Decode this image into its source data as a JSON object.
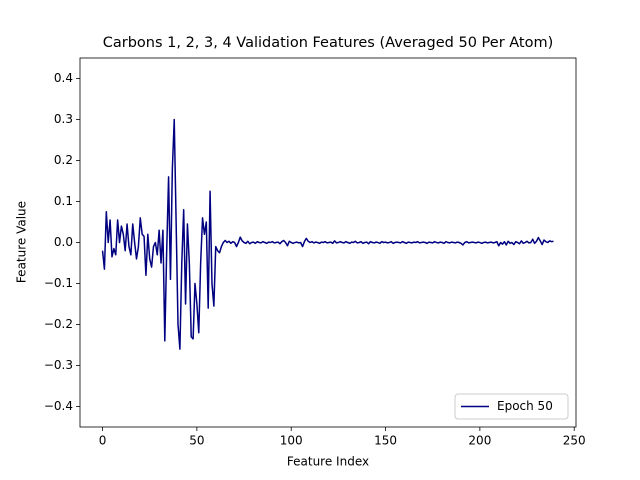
{
  "chart_data": {
    "type": "line",
    "title": "Carbons 1, 2, 3, 4 Validation Features (Averaged 50 Per Atom)",
    "x_label": "Feature Index",
    "y_label": "Feature Value",
    "legend": "lower right",
    "xlim": [
      -11.95,
      250.95
    ],
    "xticks": [
      0,
      50,
      100,
      150,
      200,
      250
    ],
    "ylim": [
      -0.45,
      0.45
    ],
    "yticks": [
      {
        "value": -0.4,
        "label": "−0.4"
      },
      {
        "value": -0.3,
        "label": "−0.3"
      },
      {
        "value": -0.2,
        "label": "−0.2"
      },
      {
        "value": -0.1,
        "label": "−0.1"
      },
      {
        "value": 0,
        "label": "0.0"
      },
      0.1,
      0.2,
      0.3,
      0.4
    ],
    "x": [
      0,
      1,
      2,
      3,
      4,
      5,
      6,
      7,
      8,
      9,
      10,
      11,
      12,
      13,
      14,
      15,
      16,
      17,
      18,
      19,
      20,
      21,
      22,
      23,
      24,
      25,
      26,
      27,
      28,
      29,
      30,
      31,
      32,
      33,
      34,
      35,
      36,
      37,
      38,
      39,
      40,
      41,
      42,
      43,
      44,
      45,
      46,
      47,
      48,
      49,
      50,
      51,
      52,
      53,
      54,
      55,
      56,
      57,
      58,
      59,
      60,
      61,
      62,
      63,
      64,
      65,
      66,
      67,
      68,
      69,
      70,
      71,
      72,
      73,
      74,
      75,
      76,
      77,
      78,
      79,
      80,
      81,
      82,
      83,
      84,
      85,
      86,
      87,
      88,
      89,
      90,
      91,
      92,
      93,
      94,
      95,
      96,
      97,
      98,
      99,
      100,
      101,
      102,
      103,
      104,
      105,
      106,
      107,
      108,
      109,
      110,
      111,
      112,
      113,
      114,
      115,
      116,
      117,
      118,
      119,
      120,
      121,
      122,
      123,
      124,
      125,
      126,
      127,
      128,
      129,
      130,
      131,
      132,
      133,
      134,
      135,
      136,
      137,
      138,
      139,
      140,
      141,
      142,
      143,
      144,
      145,
      146,
      147,
      148,
      149,
      150,
      151,
      152,
      153,
      154,
      155,
      156,
      157,
      158,
      159,
      160,
      161,
      162,
      163,
      164,
      165,
      166,
      167,
      168,
      169,
      170,
      171,
      172,
      173,
      174,
      175,
      176,
      177,
      178,
      179,
      180,
      181,
      182,
      183,
      184,
      185,
      186,
      187,
      188,
      189,
      190,
      191,
      192,
      193,
      194,
      195,
      196,
      197,
      198,
      199,
      200,
      201,
      202,
      203,
      204,
      205,
      206,
      207,
      208,
      209,
      210,
      211,
      212,
      213,
      214,
      215,
      216,
      217,
      218,
      219,
      220,
      221,
      222,
      223,
      224,
      225,
      226,
      227,
      228,
      229,
      230,
      231,
      232,
      233,
      234,
      235,
      236,
      237,
      238,
      239
    ],
    "series": [
      {
        "name": "Epoch 50",
        "color": "#000080",
        "values": [
          -0.02,
          -0.065,
          0.075,
          0.0,
          0.055,
          -0.035,
          -0.015,
          -0.03,
          0.055,
          0.0,
          0.04,
          0.02,
          -0.02,
          0.045,
          -0.01,
          -0.03,
          0.045,
          0.0,
          -0.04,
          -0.01,
          0.06,
          0.02,
          0.015,
          -0.08,
          0.02,
          -0.04,
          -0.06,
          -0.01,
          0.0,
          -0.03,
          0.03,
          -0.05,
          0.03,
          -0.24,
          -0.02,
          0.16,
          -0.09,
          0.18,
          0.3,
          0.05,
          -0.2,
          -0.26,
          -0.05,
          0.08,
          -0.15,
          0.045,
          -0.05,
          -0.23,
          -0.235,
          -0.1,
          -0.15,
          -0.22,
          -0.05,
          0.06,
          0.02,
          0.05,
          -0.16,
          0.125,
          -0.1,
          -0.155,
          -0.01,
          -0.02,
          -0.025,
          -0.01,
          0.0,
          0.005,
          0.0,
          0.003,
          -0.002,
          0.002,
          0.0,
          -0.01,
          0.0,
          0.013,
          0.004,
          0.0,
          -0.002,
          0.003,
          -0.003,
          0.0,
          0.001,
          -0.002,
          0.002,
          0.0,
          -0.001,
          0.002,
          0.0,
          -0.002,
          0.001,
          0.0,
          0.002,
          -0.001,
          0.0,
          0.001,
          -0.003,
          0.002,
          0.005,
          0.0,
          -0.008,
          0.003,
          0.0,
          -0.002,
          0.0,
          0.001,
          -0.001,
          0.0,
          -0.01,
          0.002,
          0.01,
          0.003,
          0.0,
          0.002,
          -0.001,
          0.001,
          0.0,
          -0.002,
          0.001,
          0.0,
          0.002,
          -0.001,
          0.0,
          0.001,
          -0.002,
          0.004,
          -0.001,
          0.0,
          0.002,
          0.0,
          -0.001,
          0.002,
          0.0,
          -0.002,
          0.001,
          0.0,
          0.003,
          -0.001,
          0.0,
          0.002,
          -0.002,
          0.0,
          0.001,
          -0.003,
          0.002,
          0.0,
          -0.001,
          0.001,
          0.0,
          -0.002,
          0.002,
          0.0,
          0.001,
          -0.001,
          0.0,
          0.002,
          -0.002,
          0.0,
          0.001,
          0.0,
          -0.001,
          0.002,
          0.0,
          -0.002,
          0.001,
          0.0,
          -0.001,
          0.001,
          0.0,
          0.002,
          -0.001,
          0.0,
          0.001,
          0.0,
          -0.002,
          0.001,
          0.0,
          -0.001,
          0.002,
          0.0,
          -0.001,
          0.001,
          0.0,
          -0.002,
          0.002,
          0.0,
          -0.001,
          0.001,
          0.0,
          -0.001,
          0.001,
          0.0,
          -0.002,
          -0.006,
          0.0,
          0.002,
          -0.001,
          0.0,
          0.001,
          0.0,
          -0.001,
          0.001,
          0.0,
          -0.002,
          0.0,
          0.001,
          -0.001,
          0.0,
          0.001,
          -0.001,
          0.0,
          0.002,
          -0.008,
          0.0,
          -0.004,
          0.002,
          -0.006,
          0.003,
          -0.002,
          0.0,
          -0.005,
          0.002,
          0.0,
          -0.003,
          0.004,
          -0.002,
          0.0,
          0.003,
          -0.001,
          0.0,
          0.008,
          -0.002,
          0.003,
          0.012,
          0.004,
          -0.005,
          0.006,
          0.002,
          0.0,
          0.004,
          0.002,
          0.003
        ]
      }
    ]
  }
}
